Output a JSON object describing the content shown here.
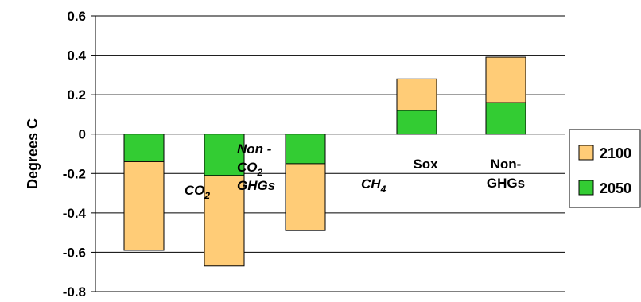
{
  "chart_data": {
    "type": "bar",
    "stacked": true,
    "ylabel": "Degrees C",
    "ylim": [
      -0.8,
      0.6
    ],
    "yticks": [
      "0.6",
      "0.4",
      "0.2",
      "0",
      "-0.2",
      "-0.4",
      "-0.6",
      "-0.8"
    ],
    "grid": true,
    "legend_position": "right",
    "categories": [
      "CO2",
      "Non-CO2 GHGs",
      "CH4",
      "Sox",
      "Non-GHGs"
    ],
    "category_labels": [
      {
        "lines": [
          {
            "text": "CO",
            "sub": "2"
          }
        ],
        "italic": true
      },
      {
        "lines": [
          {
            "text": "Non -"
          },
          {
            "text": "CO",
            "sub": "2"
          },
          {
            "text": "GHGs"
          }
        ],
        "italic": true
      },
      {
        "lines": [
          {
            "text": "CH",
            "sub": "4"
          }
        ],
        "italic": true
      },
      {
        "lines": [
          {
            "text": "Sox"
          }
        ],
        "italic": false
      },
      {
        "lines": [
          {
            "text": "Non-"
          },
          {
            "text": "GHGs"
          }
        ],
        "italic": false
      }
    ],
    "series": [
      {
        "name": "2050",
        "values": [
          -0.14,
          -0.21,
          -0.15,
          0.12,
          0.16
        ],
        "color": "#33cc33"
      },
      {
        "name": "2100",
        "values": [
          -0.59,
          -0.67,
          -0.49,
          0.28,
          0.39
        ],
        "color": "#ffcc77"
      }
    ],
    "legend": [
      {
        "name": "2100",
        "color": "#ffcc77"
      },
      {
        "name": "2050",
        "color": "#33cc33"
      }
    ]
  }
}
